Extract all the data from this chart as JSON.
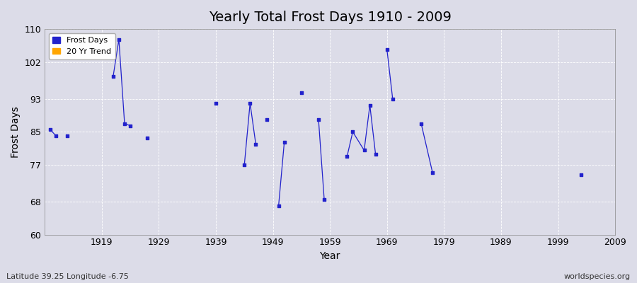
{
  "title": "Yearly Total Frost Days 1910 - 2009",
  "xlabel": "Year",
  "ylabel": "Frost Days",
  "xlim": [
    1909,
    2009
  ],
  "ylim": [
    60,
    110
  ],
  "yticks": [
    60,
    68,
    77,
    85,
    93,
    102,
    110
  ],
  "xticks": [
    1919,
    1929,
    1939,
    1949,
    1959,
    1969,
    1979,
    1989,
    1999,
    2009
  ],
  "background_color": "#dcdce8",
  "plot_bg_color": "#dcdce8",
  "frost_days_color": "#2222cc",
  "trend_color": "#FFA500",
  "frost_days": [
    [
      1910,
      85.5
    ],
    [
      1911,
      84.0
    ],
    [
      1913,
      84.0
    ],
    [
      1921,
      98.5
    ],
    [
      1922,
      107.5
    ],
    [
      1923,
      87.0
    ],
    [
      1924,
      86.5
    ],
    [
      1927,
      83.5
    ],
    [
      1939,
      92.0
    ],
    [
      1944,
      77.0
    ],
    [
      1945,
      92.0
    ],
    [
      1946,
      82.0
    ],
    [
      1948,
      88.0
    ],
    [
      1950,
      67.0
    ],
    [
      1951,
      82.5
    ],
    [
      1954,
      94.5
    ],
    [
      1957,
      88.0
    ],
    [
      1958,
      68.5
    ],
    [
      1962,
      79.0
    ],
    [
      1963,
      85.0
    ],
    [
      1965,
      80.5
    ],
    [
      1966,
      91.5
    ],
    [
      1967,
      79.5
    ],
    [
      1969,
      105.0
    ],
    [
      1970,
      93.0
    ],
    [
      1975,
      87.0
    ],
    [
      1977,
      75.0
    ],
    [
      2003,
      74.5
    ]
  ],
  "connected_groups": [
    [
      0,
      1
    ],
    [
      3,
      4,
      5,
      6
    ],
    [
      9,
      10,
      11
    ],
    [
      13,
      14
    ],
    [
      16,
      17
    ],
    [
      18,
      19,
      20,
      21,
      22
    ],
    [
      23,
      24
    ],
    [
      25,
      26
    ]
  ],
  "footer_left": "Latitude 39.25 Longitude -6.75",
  "footer_right": "worldspecies.org",
  "title_fontsize": 14,
  "label_fontsize": 10,
  "tick_fontsize": 9,
  "footer_fontsize": 8
}
